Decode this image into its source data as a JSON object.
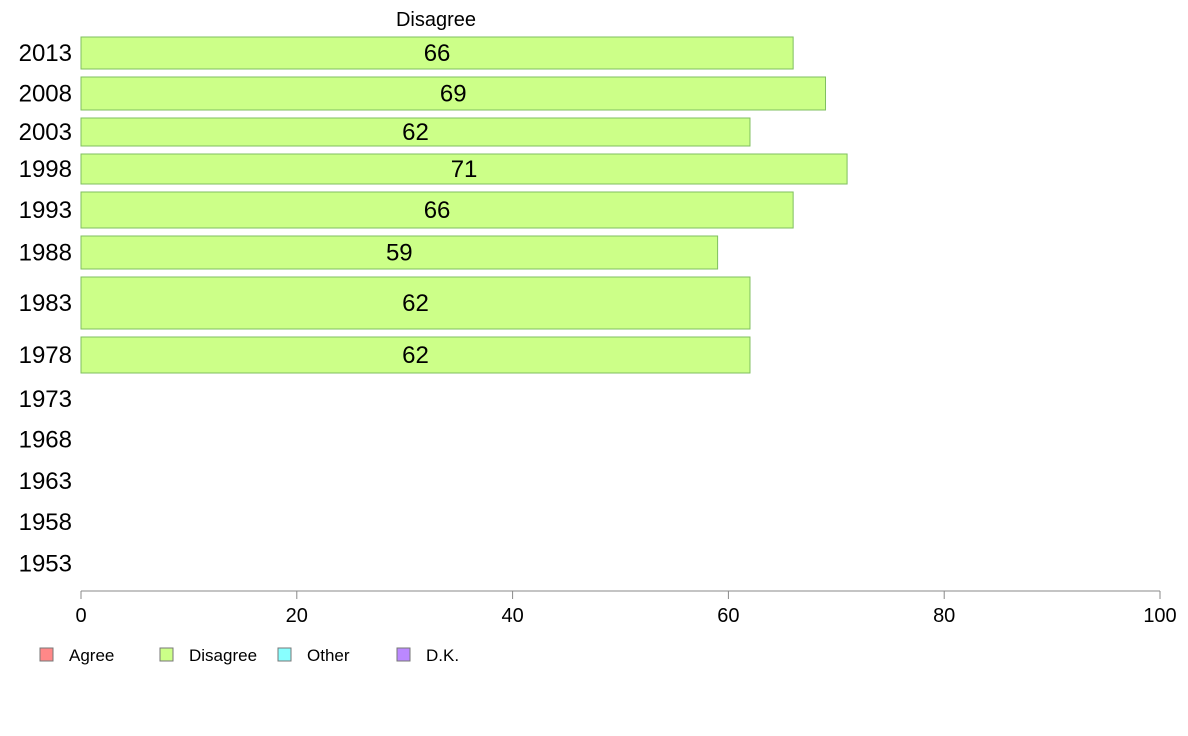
{
  "chart_data": {
    "type": "bar",
    "orientation": "horizontal",
    "title": "Disagree",
    "categories": [
      "2013",
      "2008",
      "2003",
      "1998",
      "1993",
      "1988",
      "1983",
      "1978",
      "1973",
      "1968",
      "1963",
      "1958",
      "1953"
    ],
    "series": [
      {
        "name": "Disagree",
        "color": "#ccff88",
        "values": [
          66,
          69,
          62,
          71,
          66,
          59,
          62,
          62,
          null,
          null,
          null,
          null,
          null
        ],
        "labels": [
          "66",
          "69",
          "62",
          "71",
          "66",
          "59",
          "62",
          "62",
          "",
          "",
          "",
          "",
          ""
        ]
      }
    ],
    "xlim": [
      0,
      100
    ],
    "xticks": [
      "0",
      "20",
      "40",
      "60",
      "80",
      "100"
    ],
    "grid": false,
    "legend_position": "bottom-left",
    "legend": [
      {
        "label": "Agree",
        "color": "#ff8888"
      },
      {
        "label": "Disagree",
        "color": "#ccff88"
      },
      {
        "label": "Other",
        "color": "#88ffff"
      },
      {
        "label": "D.K.",
        "color": "#bb88ff"
      }
    ]
  }
}
